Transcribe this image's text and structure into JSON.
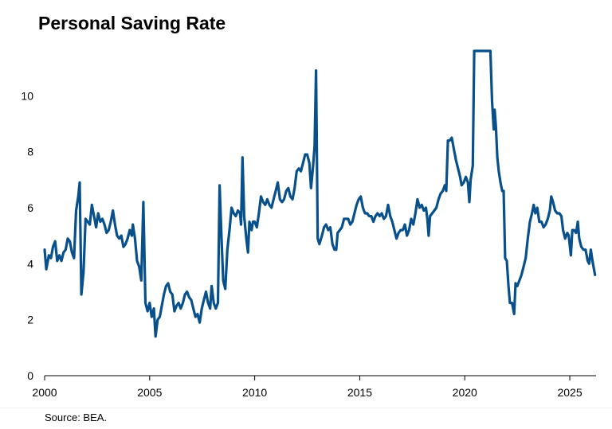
{
  "chart_data": {
    "type": "line",
    "title": "Personal Saving Rate",
    "source": "Source: BEA.",
    "xlabel": "",
    "ylabel": "",
    "xlim": [
      2000,
      2026.25
    ],
    "ylim": [
      0,
      11.6
    ],
    "x_ticks": [
      2000,
      2005,
      2010,
      2015,
      2020,
      2025
    ],
    "y_ticks": [
      0,
      2,
      4,
      6,
      8,
      10
    ],
    "grid": false,
    "line_color": "#08508c",
    "series": [
      {
        "points": [
          [
            2000.0,
            4.5
          ],
          [
            2000.08,
            3.8
          ],
          [
            2000.2,
            4.3
          ],
          [
            2000.3,
            4.2
          ],
          [
            2000.4,
            4.6
          ],
          [
            2000.5,
            4.8
          ],
          [
            2000.6,
            4.1
          ],
          [
            2000.7,
            4.3
          ],
          [
            2000.8,
            4.1
          ],
          [
            2000.9,
            4.4
          ],
          [
            2001.0,
            4.5
          ],
          [
            2001.1,
            4.9
          ],
          [
            2001.2,
            4.8
          ],
          [
            2001.3,
            4.4
          ],
          [
            2001.4,
            4.2
          ],
          [
            2001.5,
            5.9
          ],
          [
            2001.6,
            6.4
          ],
          [
            2001.67,
            6.9
          ],
          [
            2001.75,
            2.9
          ],
          [
            2001.85,
            3.7
          ],
          [
            2001.95,
            5.6
          ],
          [
            2002.05,
            5.5
          ],
          [
            2002.15,
            5.4
          ],
          [
            2002.25,
            6.1
          ],
          [
            2002.35,
            5.7
          ],
          [
            2002.45,
            5.3
          ],
          [
            2002.55,
            5.8
          ],
          [
            2002.65,
            5.5
          ],
          [
            2002.75,
            5.6
          ],
          [
            2002.85,
            5.4
          ],
          [
            2002.95,
            5.1
          ],
          [
            2003.05,
            5.2
          ],
          [
            2003.15,
            5.5
          ],
          [
            2003.25,
            5.9
          ],
          [
            2003.35,
            5.4
          ],
          [
            2003.45,
            5.0
          ],
          [
            2003.55,
            4.9
          ],
          [
            2003.65,
            5.0
          ],
          [
            2003.75,
            4.6
          ],
          [
            2003.85,
            4.7
          ],
          [
            2003.95,
            4.9
          ],
          [
            2004.05,
            5.2
          ],
          [
            2004.15,
            5.0
          ],
          [
            2004.2,
            5.4
          ],
          [
            2004.3,
            4.9
          ],
          [
            2004.4,
            4.1
          ],
          [
            2004.5,
            3.9
          ],
          [
            2004.6,
            3.4
          ],
          [
            2004.7,
            6.2
          ],
          [
            2004.8,
            2.6
          ],
          [
            2004.9,
            2.3
          ],
          [
            2005.0,
            2.6
          ],
          [
            2005.1,
            2.1
          ],
          [
            2005.2,
            2.4
          ],
          [
            2005.28,
            1.4
          ],
          [
            2005.38,
            2.0
          ],
          [
            2005.48,
            2.1
          ],
          [
            2005.58,
            2.5
          ],
          [
            2005.68,
            2.9
          ],
          [
            2005.78,
            3.2
          ],
          [
            2005.88,
            3.3
          ],
          [
            2005.98,
            3.0
          ],
          [
            2006.08,
            2.9
          ],
          [
            2006.18,
            2.3
          ],
          [
            2006.28,
            2.5
          ],
          [
            2006.38,
            2.6
          ],
          [
            2006.48,
            2.4
          ],
          [
            2006.58,
            2.6
          ],
          [
            2006.68,
            2.9
          ],
          [
            2006.78,
            3.0
          ],
          [
            2006.88,
            2.8
          ],
          [
            2006.98,
            2.7
          ],
          [
            2007.08,
            2.4
          ],
          [
            2007.18,
            2.1
          ],
          [
            2007.28,
            2.2
          ],
          [
            2007.38,
            1.9
          ],
          [
            2007.48,
            2.4
          ],
          [
            2007.58,
            2.7
          ],
          [
            2007.68,
            3.0
          ],
          [
            2007.78,
            2.6
          ],
          [
            2007.88,
            2.4
          ],
          [
            2007.95,
            3.2
          ],
          [
            2008.05,
            2.6
          ],
          [
            2008.15,
            2.4
          ],
          [
            2008.25,
            2.6
          ],
          [
            2008.33,
            6.8
          ],
          [
            2008.42,
            4.9
          ],
          [
            2008.5,
            3.4
          ],
          [
            2008.6,
            3.1
          ],
          [
            2008.7,
            4.5
          ],
          [
            2008.8,
            5.2
          ],
          [
            2008.9,
            6.0
          ],
          [
            2009.0,
            5.8
          ],
          [
            2009.1,
            5.7
          ],
          [
            2009.2,
            5.9
          ],
          [
            2009.3,
            5.8
          ],
          [
            2009.35,
            5.4
          ],
          [
            2009.42,
            7.8
          ],
          [
            2009.5,
            5.7
          ],
          [
            2009.6,
            4.9
          ],
          [
            2009.68,
            4.4
          ],
          [
            2009.75,
            5.5
          ],
          [
            2009.85,
            5.2
          ],
          [
            2009.92,
            5.5
          ],
          [
            2010.0,
            5.5
          ],
          [
            2010.1,
            5.3
          ],
          [
            2010.2,
            5.8
          ],
          [
            2010.3,
            6.4
          ],
          [
            2010.4,
            6.2
          ],
          [
            2010.5,
            6.1
          ],
          [
            2010.6,
            6.3
          ],
          [
            2010.7,
            6.1
          ],
          [
            2010.8,
            6.0
          ],
          [
            2010.9,
            6.3
          ],
          [
            2011.0,
            6.6
          ],
          [
            2011.1,
            6.9
          ],
          [
            2011.2,
            6.3
          ],
          [
            2011.3,
            6.2
          ],
          [
            2011.4,
            6.3
          ],
          [
            2011.5,
            6.6
          ],
          [
            2011.6,
            6.7
          ],
          [
            2011.7,
            6.4
          ],
          [
            2011.8,
            6.3
          ],
          [
            2011.9,
            6.7
          ],
          [
            2012.0,
            7.3
          ],
          [
            2012.1,
            7.4
          ],
          [
            2012.2,
            7.3
          ],
          [
            2012.3,
            7.6
          ],
          [
            2012.4,
            7.9
          ],
          [
            2012.5,
            7.9
          ],
          [
            2012.6,
            7.6
          ],
          [
            2012.68,
            6.7
          ],
          [
            2012.78,
            7.5
          ],
          [
            2012.85,
            8.2
          ],
          [
            2012.92,
            10.9
          ],
          [
            2013.0,
            4.9
          ],
          [
            2013.08,
            4.7
          ],
          [
            2013.2,
            5.0
          ],
          [
            2013.3,
            5.3
          ],
          [
            2013.4,
            5.4
          ],
          [
            2013.5,
            5.2
          ],
          [
            2013.6,
            5.3
          ],
          [
            2013.7,
            4.7
          ],
          [
            2013.8,
            4.5
          ],
          [
            2013.88,
            4.5
          ],
          [
            2013.95,
            5.1
          ],
          [
            2014.05,
            5.2
          ],
          [
            2014.15,
            5.3
          ],
          [
            2014.25,
            5.6
          ],
          [
            2014.35,
            5.6
          ],
          [
            2014.45,
            5.6
          ],
          [
            2014.55,
            5.4
          ],
          [
            2014.65,
            5.5
          ],
          [
            2014.75,
            5.8
          ],
          [
            2014.85,
            6.1
          ],
          [
            2014.95,
            6.3
          ],
          [
            2015.05,
            6.4
          ],
          [
            2015.15,
            6.0
          ],
          [
            2015.25,
            5.8
          ],
          [
            2015.35,
            5.8
          ],
          [
            2015.45,
            5.7
          ],
          [
            2015.55,
            5.7
          ],
          [
            2015.65,
            5.5
          ],
          [
            2015.75,
            5.7
          ],
          [
            2015.85,
            5.8
          ],
          [
            2015.95,
            5.7
          ],
          [
            2016.05,
            5.8
          ],
          [
            2016.15,
            5.6
          ],
          [
            2016.25,
            5.7
          ],
          [
            2016.35,
            6.1
          ],
          [
            2016.45,
            5.7
          ],
          [
            2016.55,
            5.5
          ],
          [
            2016.65,
            5.2
          ],
          [
            2016.75,
            4.9
          ],
          [
            2016.85,
            5.1
          ],
          [
            2016.95,
            5.2
          ],
          [
            2017.05,
            5.2
          ],
          [
            2017.15,
            5.4
          ],
          [
            2017.25,
            5.0
          ],
          [
            2017.35,
            5.2
          ],
          [
            2017.45,
            5.6
          ],
          [
            2017.55,
            5.4
          ],
          [
            2017.65,
            5.8
          ],
          [
            2017.75,
            6.3
          ],
          [
            2017.85,
            6.0
          ],
          [
            2017.95,
            6.1
          ],
          [
            2018.05,
            5.9
          ],
          [
            2018.15,
            6.0
          ],
          [
            2018.22,
            5.6
          ],
          [
            2018.28,
            5.0
          ],
          [
            2018.35,
            5.7
          ],
          [
            2018.45,
            5.8
          ],
          [
            2018.55,
            5.9
          ],
          [
            2018.65,
            6.0
          ],
          [
            2018.75,
            6.3
          ],
          [
            2018.85,
            6.5
          ],
          [
            2018.95,
            6.6
          ],
          [
            2019.05,
            6.8
          ],
          [
            2019.12,
            6.6
          ],
          [
            2019.2,
            8.4
          ],
          [
            2019.28,
            8.4
          ],
          [
            2019.38,
            8.5
          ],
          [
            2019.48,
            8.1
          ],
          [
            2019.58,
            7.7
          ],
          [
            2019.68,
            7.4
          ],
          [
            2019.78,
            7.1
          ],
          [
            2019.85,
            6.8
          ],
          [
            2019.95,
            6.9
          ],
          [
            2020.05,
            7.1
          ],
          [
            2020.15,
            6.9
          ],
          [
            2020.22,
            6.2
          ],
          [
            2020.28,
            7.0
          ],
          [
            2020.38,
            7.5
          ],
          [
            2020.45,
            11.6
          ],
          [
            2021.22,
            11.6
          ],
          [
            2021.3,
            9.8
          ],
          [
            2021.38,
            8.8
          ],
          [
            2021.42,
            9.5
          ],
          [
            2021.48,
            8.9
          ],
          [
            2021.55,
            7.8
          ],
          [
            2021.62,
            7.3
          ],
          [
            2021.7,
            6.9
          ],
          [
            2021.78,
            6.6
          ],
          [
            2021.85,
            6.6
          ],
          [
            2021.92,
            4.2
          ],
          [
            2022.0,
            4.1
          ],
          [
            2022.08,
            3.2
          ],
          [
            2022.15,
            2.6
          ],
          [
            2022.25,
            2.6
          ],
          [
            2022.35,
            2.2
          ],
          [
            2022.42,
            3.3
          ],
          [
            2022.5,
            3.2
          ],
          [
            2022.6,
            3.4
          ],
          [
            2022.7,
            3.6
          ],
          [
            2022.8,
            3.9
          ],
          [
            2022.9,
            4.2
          ],
          [
            2023.0,
            4.9
          ],
          [
            2023.1,
            5.5
          ],
          [
            2023.2,
            5.8
          ],
          [
            2023.28,
            6.1
          ],
          [
            2023.36,
            5.8
          ],
          [
            2023.45,
            6.0
          ],
          [
            2023.55,
            5.5
          ],
          [
            2023.65,
            5.5
          ],
          [
            2023.75,
            5.3
          ],
          [
            2023.85,
            5.4
          ],
          [
            2023.95,
            5.6
          ],
          [
            2024.05,
            5.9
          ],
          [
            2024.12,
            6.4
          ],
          [
            2024.2,
            6.2
          ],
          [
            2024.3,
            5.9
          ],
          [
            2024.4,
            5.8
          ],
          [
            2024.5,
            5.8
          ],
          [
            2024.6,
            5.7
          ],
          [
            2024.68,
            5.2
          ],
          [
            2024.78,
            4.9
          ],
          [
            2024.88,
            5.1
          ],
          [
            2024.95,
            5.0
          ],
          [
            2025.05,
            4.3
          ],
          [
            2025.12,
            5.2
          ],
          [
            2025.2,
            5.2
          ],
          [
            2025.3,
            5.1
          ],
          [
            2025.38,
            5.5
          ],
          [
            2025.45,
            4.9
          ],
          [
            2025.55,
            4.6
          ],
          [
            2025.65,
            4.5
          ],
          [
            2025.75,
            4.5
          ],
          [
            2025.85,
            4.1
          ],
          [
            2025.92,
            4.0
          ],
          [
            2026.0,
            4.5
          ],
          [
            2026.08,
            4.1
          ],
          [
            2026.2,
            3.6
          ]
        ]
      }
    ]
  }
}
